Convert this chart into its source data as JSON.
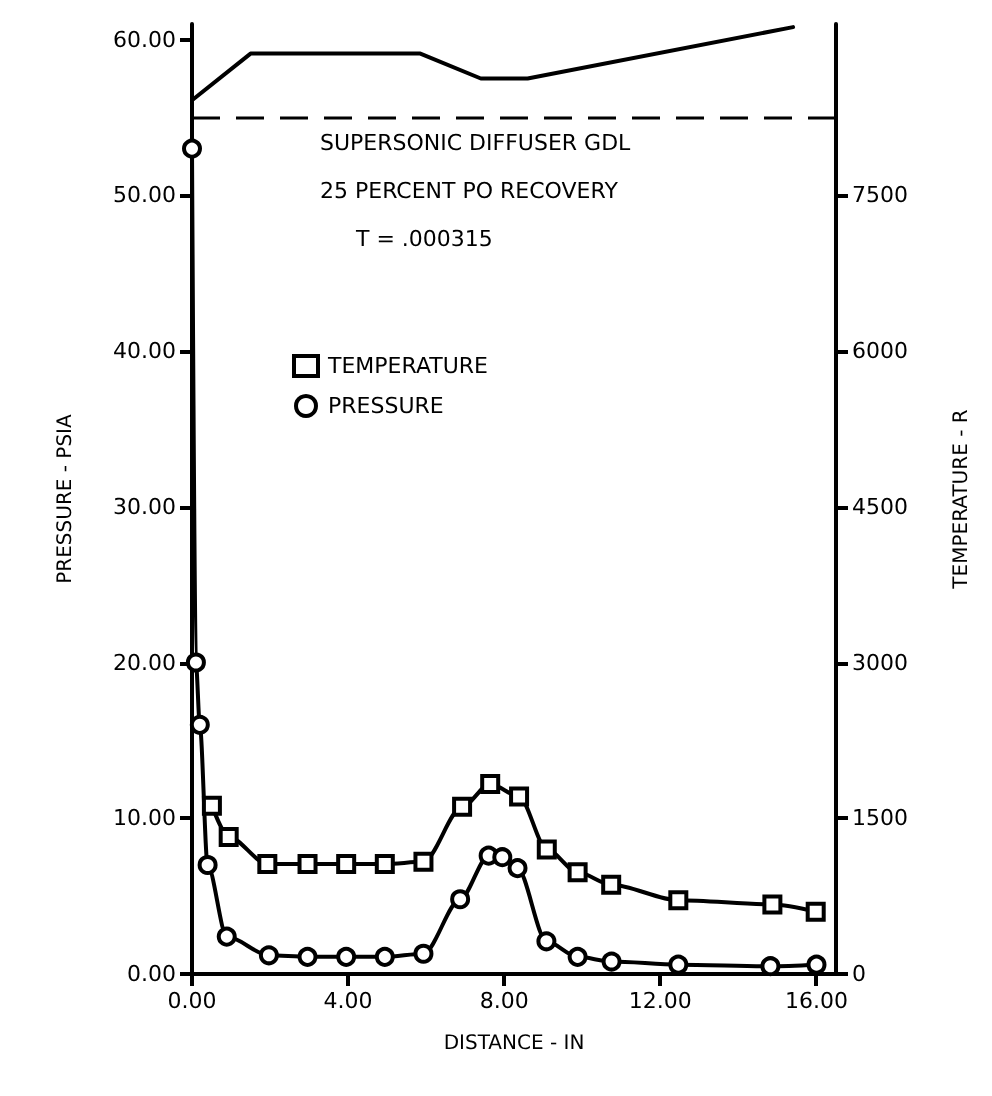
{
  "chart_data": {
    "type": "line",
    "xlabel": "DISTANCE - IN",
    "ylabel": "PRESSURE - PSIA",
    "y2label": "TEMPERATURE - R",
    "annotations": [
      "SUPERSONIC DIFFUSER GDL",
      "25 PERCENT PO RECOVERY",
      "T = .000315"
    ],
    "xlim": [
      0,
      16.5
    ],
    "xticks": [
      {
        "value": 0,
        "label": "0.00"
      },
      {
        "value": 4,
        "label": "4.00"
      },
      {
        "value": 8,
        "label": "8.00"
      },
      {
        "value": 12,
        "label": "12.00"
      },
      {
        "value": 16,
        "label": "16.00"
      }
    ],
    "ylim": [
      0,
      61
    ],
    "yticks": [
      {
        "value": 0,
        "label": "0.00"
      },
      {
        "value": 10,
        "label": "10.00"
      },
      {
        "value": 20,
        "label": "20.00"
      },
      {
        "value": 30,
        "label": "30.00"
      },
      {
        "value": 40,
        "label": "40.00"
      },
      {
        "value": 50,
        "label": "50.00"
      },
      {
        "value": 60,
        "label": "60.00"
      }
    ],
    "y2lim": [
      0,
      9150
    ],
    "y2ticks": [
      0,
      1500,
      3000,
      4500,
      6000,
      7500
    ],
    "grid": false,
    "legend": "top left",
    "line_style": "solid",
    "ref_lines": [
      {
        "axis": "y",
        "value": 55,
        "label": null,
        "color": "#000000",
        "line_style": "dashed"
      }
    ],
    "series": [
      {
        "color": "#000000",
        "marker": "none",
        "x": [
          0,
          1.5,
          5.85,
          7.4,
          8.6,
          15.4
        ],
        "values": [
          56.1,
          59.1,
          59.1,
          57.5,
          57.5,
          60.8
        ]
      },
      {
        "name": "TEMPERATURE",
        "color": "#000000",
        "marker": "square",
        "axis": "y2",
        "x": [
          0.51,
          0.94,
          1.93,
          2.96,
          3.95,
          4.94,
          5.93,
          6.92,
          7.64,
          8.38,
          9.09,
          9.88,
          10.74,
          12.46,
          14.87,
          15.98
        ],
        "values": [
          1620,
          1320,
          1060,
          1060,
          1060,
          1060,
          1080,
          1610,
          1830,
          1710,
          1200,
          980,
          860,
          710,
          670,
          600
        ]
      },
      {
        "name": "PRESSURE",
        "color": "#000000",
        "marker": "circle",
        "x": [
          0,
          0.1,
          0.2,
          0.4,
          0.89,
          1.97,
          2.96,
          3.95,
          4.94,
          5.93,
          6.87,
          7.6,
          7.95,
          8.34,
          9.08,
          9.88,
          10.75,
          12.46,
          14.82,
          16.0
        ],
        "values": [
          53,
          20,
          16,
          7,
          2.4,
          1.2,
          1.1,
          1.1,
          1.1,
          1.3,
          4.8,
          7.6,
          7.5,
          6.8,
          2.1,
          1.1,
          0.8,
          0.6,
          0.5,
          0.6
        ]
      }
    ]
  }
}
